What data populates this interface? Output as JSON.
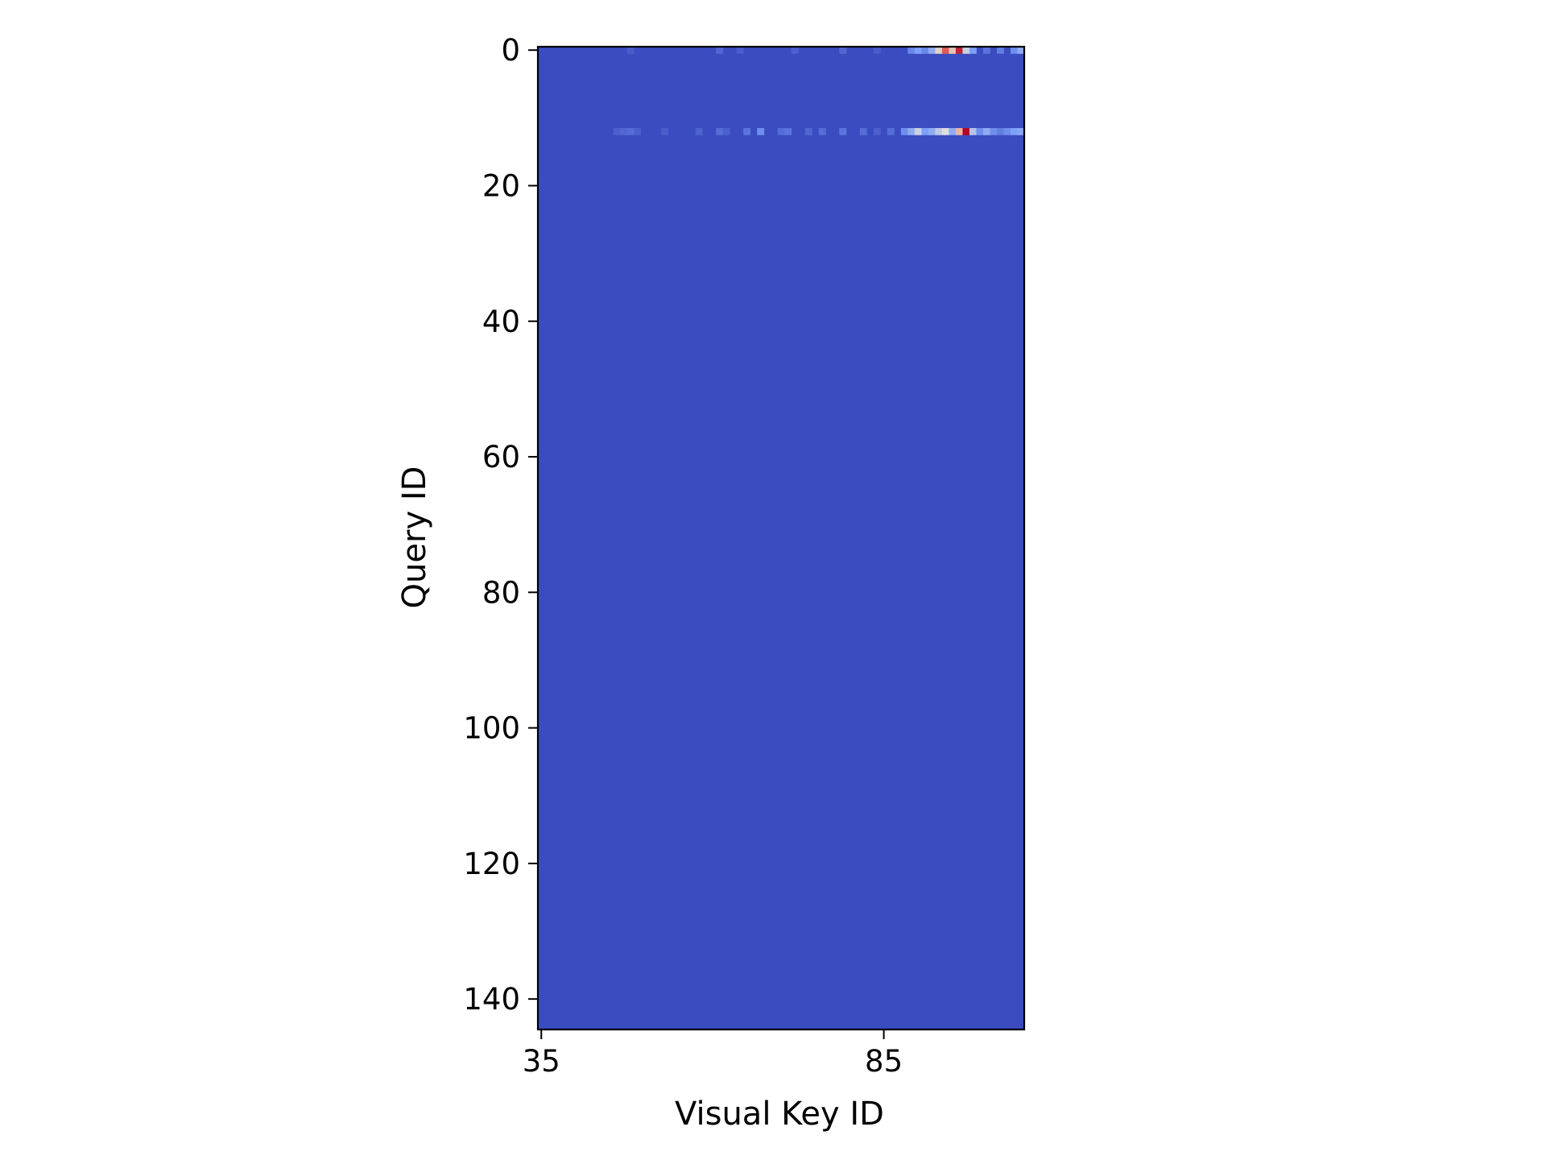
{
  "chart_data": {
    "type": "heatmap",
    "title": "",
    "xlabel": "Visual Key ID",
    "ylabel": "Query ID",
    "x_range": [
      35,
      106
    ],
    "y_range": [
      0,
      144
    ],
    "y_axis_inverted": true,
    "x_ticks": [
      35,
      85
    ],
    "y_ticks": [
      0,
      20,
      40,
      60,
      80,
      100,
      120,
      140
    ],
    "x_tick_labels": [
      "35",
      "85"
    ],
    "y_tick_labels": [
      "0",
      "20",
      "40",
      "60",
      "80",
      "100",
      "120",
      "140"
    ],
    "colormap": "coolwarm",
    "colorbar": false,
    "grid": false,
    "background_value": 0.0,
    "baseline_color": "#3b4cc0",
    "nonzero_rows": [
      {
        "query_id": 0,
        "cells": [
          {
            "key": 48,
            "value": 0.05
          },
          {
            "key": 61,
            "value": 0.08
          },
          {
            "key": 64,
            "value": 0.05
          },
          {
            "key": 72,
            "value": 0.06
          },
          {
            "key": 79,
            "value": 0.08
          },
          {
            "key": 84,
            "value": 0.05
          },
          {
            "key": 89,
            "value": 0.18
          },
          {
            "key": 90,
            "value": 0.25
          },
          {
            "key": 91,
            "value": 0.18
          },
          {
            "key": 92,
            "value": 0.3
          },
          {
            "key": 93,
            "value": 0.55
          },
          {
            "key": 94,
            "value": 0.85
          },
          {
            "key": 95,
            "value": 0.6
          },
          {
            "key": 96,
            "value": 0.95
          },
          {
            "key": 97,
            "value": 0.45
          },
          {
            "key": 98,
            "value": 0.25
          },
          {
            "key": 100,
            "value": 0.12
          },
          {
            "key": 102,
            "value": 0.15
          },
          {
            "key": 104,
            "value": 0.2
          },
          {
            "key": 105,
            "value": 0.3
          }
        ]
      },
      {
        "query_id": 12,
        "cells": [
          {
            "key": 46,
            "value": 0.06
          },
          {
            "key": 47,
            "value": 0.08
          },
          {
            "key": 48,
            "value": 0.1
          },
          {
            "key": 49,
            "value": 0.06
          },
          {
            "key": 53,
            "value": 0.05
          },
          {
            "key": 58,
            "value": 0.07
          },
          {
            "key": 61,
            "value": 0.1
          },
          {
            "key": 62,
            "value": 0.06
          },
          {
            "key": 65,
            "value": 0.12
          },
          {
            "key": 67,
            "value": 0.2
          },
          {
            "key": 70,
            "value": 0.1
          },
          {
            "key": 71,
            "value": 0.12
          },
          {
            "key": 74,
            "value": 0.08
          },
          {
            "key": 76,
            "value": 0.1
          },
          {
            "key": 79,
            "value": 0.12
          },
          {
            "key": 82,
            "value": 0.1
          },
          {
            "key": 84,
            "value": 0.06
          },
          {
            "key": 86,
            "value": 0.1
          },
          {
            "key": 88,
            "value": 0.2
          },
          {
            "key": 89,
            "value": 0.3
          },
          {
            "key": 90,
            "value": 0.45
          },
          {
            "key": 91,
            "value": 0.25
          },
          {
            "key": 92,
            "value": 0.3
          },
          {
            "key": 93,
            "value": 0.42
          },
          {
            "key": 94,
            "value": 0.5
          },
          {
            "key": 95,
            "value": 0.3
          },
          {
            "key": 96,
            "value": 0.65
          },
          {
            "key": 97,
            "value": 1.0
          },
          {
            "key": 98,
            "value": 0.4
          },
          {
            "key": 99,
            "value": 0.2
          },
          {
            "key": 100,
            "value": 0.3
          },
          {
            "key": 101,
            "value": 0.2
          },
          {
            "key": 102,
            "value": 0.15
          },
          {
            "key": 103,
            "value": 0.2
          },
          {
            "key": 104,
            "value": 0.25
          },
          {
            "key": 105,
            "value": 0.28
          }
        ]
      }
    ]
  }
}
